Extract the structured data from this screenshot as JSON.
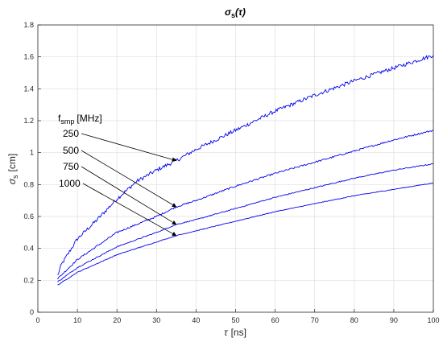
{
  "chart_data": {
    "type": "line",
    "title_main": "σ",
    "title_sub": "s",
    "title_arg": "(τ)",
    "xlabel_main": "τ",
    "xlabel_unit": "[ns]",
    "ylabel_main": "σ",
    "ylabel_sub": "s",
    "ylabel_unit": "[cm]",
    "xlim": [
      0,
      100
    ],
    "ylim": [
      0,
      1.8
    ],
    "xticks": [
      "0",
      "10",
      "20",
      "30",
      "40",
      "50",
      "60",
      "70",
      "80",
      "90",
      "100"
    ],
    "yticks": [
      "0",
      "0.2",
      "0.4",
      "0.6",
      "0.8",
      "1",
      "1.2",
      "1.4",
      "1.6",
      "1.8"
    ],
    "grid": true,
    "line_color": "#0000ee",
    "legend_header_main": "f",
    "legend_header_sub": "smp",
    "legend_header_unit": "[MHz]",
    "series": [
      {
        "name": "250",
        "x": [
          5,
          6,
          8,
          10,
          15,
          20,
          25,
          30,
          35,
          40,
          50,
          60,
          70,
          80,
          90,
          100
        ],
        "y": [
          0.23,
          0.3,
          0.38,
          0.46,
          0.58,
          0.71,
          0.82,
          0.89,
          0.95,
          1.02,
          1.14,
          1.26,
          1.36,
          1.45,
          1.53,
          1.61
        ]
      },
      {
        "name": "500",
        "x": [
          5,
          10,
          20,
          30,
          35,
          40,
          50,
          60,
          70,
          80,
          90,
          100
        ],
        "y": [
          0.21,
          0.33,
          0.5,
          0.6,
          0.66,
          0.7,
          0.79,
          0.87,
          0.94,
          1.01,
          1.08,
          1.14
        ]
      },
      {
        "name": "750",
        "x": [
          5,
          10,
          20,
          30,
          35,
          40,
          50,
          60,
          70,
          80,
          90,
          100
        ],
        "y": [
          0.19,
          0.28,
          0.41,
          0.5,
          0.55,
          0.58,
          0.65,
          0.72,
          0.78,
          0.84,
          0.89,
          0.93
        ]
      },
      {
        "name": "1000",
        "x": [
          5,
          10,
          20,
          30,
          35,
          40,
          50,
          60,
          70,
          80,
          90,
          100
        ],
        "y": [
          0.17,
          0.25,
          0.36,
          0.44,
          0.48,
          0.51,
          0.57,
          0.63,
          0.68,
          0.73,
          0.77,
          0.81
        ]
      }
    ],
    "annotations": [
      {
        "label": "250",
        "arrow_to": [
          35,
          0.95
        ]
      },
      {
        "label": "500",
        "arrow_to": [
          35,
          0.66
        ]
      },
      {
        "label": "750",
        "arrow_to": [
          35,
          0.55
        ]
      },
      {
        "label": "1000",
        "arrow_to": [
          35,
          0.48
        ]
      }
    ]
  }
}
